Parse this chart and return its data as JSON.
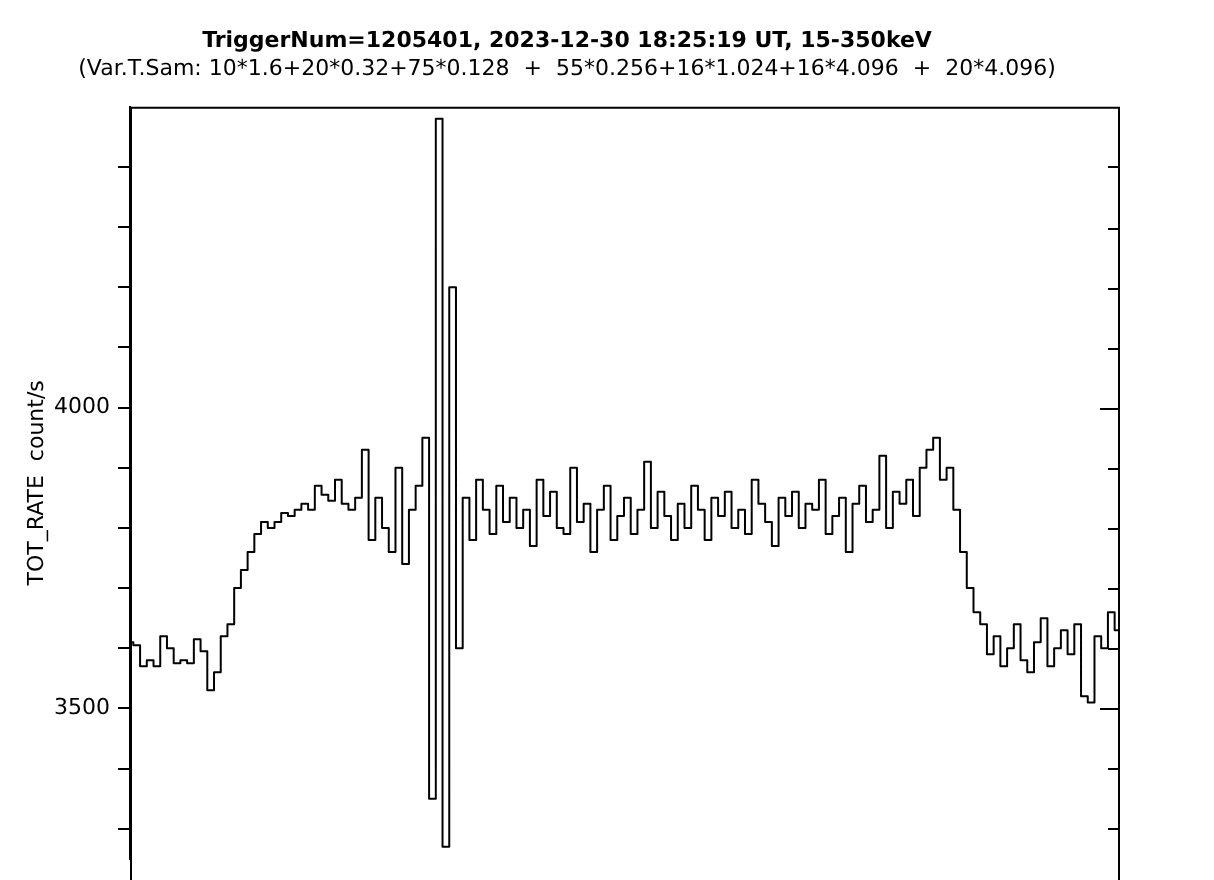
{
  "chart_data": {
    "type": "step",
    "title": "TriggerNum=1205401, 2023-12-30 18:25:19 UT, 15-350keV",
    "subtitle": "(Var.T.Sam: 10*1.6+20*0.32+75*0.128  +  55*0.256+16*1.024+16*4.096  +  20*4.096)",
    "ylabel": "TOT_RATE  count/s",
    "categories": [
      null,
      null,
      null,
      null,
      null,
      null,
      null,
      null,
      null,
      null,
      null,
      null,
      null,
      null,
      null,
      null,
      null,
      null,
      null,
      null,
      null,
      null,
      null,
      null,
      null,
      null,
      null,
      null,
      null,
      null,
      null,
      null,
      null,
      null,
      null,
      null,
      null,
      null,
      null,
      null,
      null,
      null,
      null,
      null,
      null,
      null,
      null,
      null,
      null,
      null,
      null,
      null,
      null,
      null,
      null,
      null,
      null,
      null,
      null,
      null,
      null,
      null,
      null,
      null,
      null,
      null,
      null,
      null,
      null,
      null,
      null,
      null,
      null,
      null,
      null,
      null,
      null,
      null,
      null,
      null,
      null,
      null,
      null,
      null,
      null,
      null,
      null,
      null,
      null,
      null,
      null,
      null,
      null,
      null,
      null,
      null,
      null,
      null,
      null,
      null,
      null,
      null,
      null,
      null,
      null,
      null,
      null,
      null,
      null,
      null,
      null,
      null,
      null,
      null,
      null,
      null,
      null,
      null,
      null,
      null,
      null,
      null,
      null,
      null,
      null,
      null,
      null,
      null,
      null,
      null,
      null,
      null,
      null,
      null,
      null,
      null,
      null,
      null,
      null,
      null,
      null,
      null,
      null,
      null,
      null,
      null,
      null,
      null
    ],
    "values": [
      3610,
      3605,
      3570,
      3580,
      3570,
      3620,
      3600,
      3575,
      3580,
      3575,
      3615,
      3595,
      3530,
      3560,
      3620,
      3640,
      3700,
      3730,
      3760,
      3790,
      3810,
      3800,
      3810,
      3825,
      3820,
      3830,
      3840,
      3830,
      3870,
      3855,
      3845,
      3880,
      3840,
      3830,
      3850,
      3930,
      3780,
      3850,
      3800,
      3760,
      3900,
      3740,
      3830,
      3870,
      3950,
      3350,
      4480,
      3270,
      4200,
      3600,
      3850,
      3780,
      3880,
      3830,
      3790,
      3870,
      3810,
      3850,
      3800,
      3830,
      3770,
      3880,
      3820,
      3860,
      3800,
      3790,
      3900,
      3810,
      3840,
      3760,
      3830,
      3870,
      3780,
      3820,
      3850,
      3790,
      3830,
      3910,
      3800,
      3860,
      3820,
      3780,
      3840,
      3800,
      3870,
      3830,
      3780,
      3850,
      3820,
      3860,
      3800,
      3830,
      3790,
      3880,
      3840,
      3810,
      3770,
      3850,
      3820,
      3860,
      3800,
      3840,
      3830,
      3880,
      3790,
      3820,
      3850,
      3760,
      3840,
      3870,
      3810,
      3830,
      3920,
      3800,
      3860,
      3840,
      3880,
      3820,
      3900,
      3930,
      3950,
      3880,
      3900,
      3830,
      3760,
      3700,
      3660,
      3640,
      3590,
      3620,
      3570,
      3600,
      3640,
      3580,
      3560,
      3610,
      3650,
      3570,
      3600,
      3630,
      3590,
      3640,
      3520,
      3510,
      3620,
      3600,
      3660,
      3630
    ],
    "color": "#000000",
    "ylim": [
      3250,
      4500
    ],
    "yticks": [
      {
        "value": 3300,
        "label": null
      },
      {
        "value": 3400,
        "label": null
      },
      3500,
      {
        "value": 3600,
        "label": null
      },
      {
        "value": 3700,
        "label": null
      },
      {
        "value": 3800,
        "label": null
      },
      {
        "value": 3900,
        "label": null
      },
      4000,
      {
        "value": 4100,
        "label": null
      },
      {
        "value": 4200,
        "label": null
      },
      {
        "value": 4300,
        "label": null
      },
      {
        "value": 4400,
        "label": null
      }
    ],
    "grid": false,
    "legend": false
  }
}
